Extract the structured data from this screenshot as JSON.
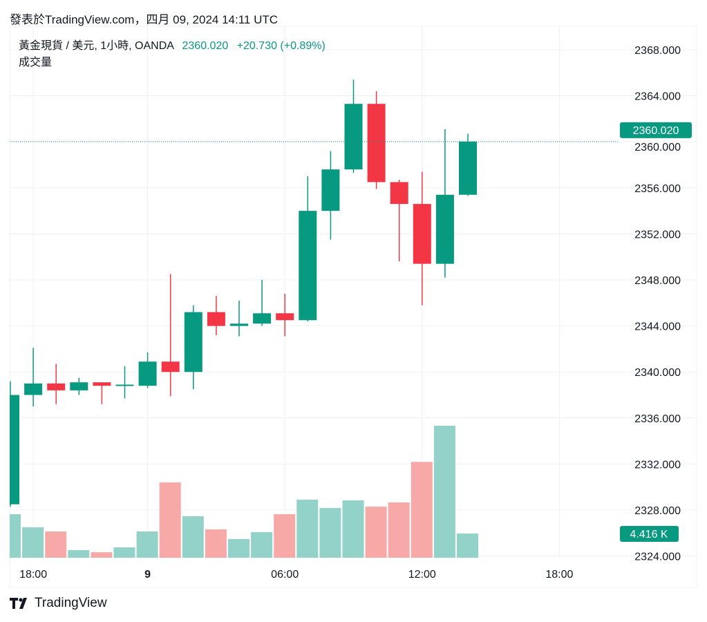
{
  "published": "發表於TradingView.com，四月 09, 2024 14:11 UTC",
  "legend": {
    "symbol": "黃金現貨 / 美元, 1小時, OANDA",
    "last": "2360.020",
    "change": "+20.730 (+0.89%)",
    "volume_label": "成交量"
  },
  "footer": {
    "brand": "TradingView"
  },
  "colors": {
    "up": "#089981",
    "down": "#f23645",
    "up_vol": "#92d2c9",
    "down_vol": "#f7a9a7",
    "grid": "#f0f1f3"
  },
  "chart_data": {
    "type": "candlestick",
    "title": "黃金現貨 / 美元, 1小時, OANDA",
    "ylim": [
      2324,
      2370
    ],
    "y_ticks": [
      "2368.000",
      "2364.000",
      "2360.000",
      "2356.000",
      "2352.000",
      "2348.000",
      "2344.000",
      "2340.000",
      "2336.000",
      "2332.000",
      "2328.000",
      "2324.000"
    ],
    "x_ticks": [
      {
        "label": "18:00",
        "index": 1
      },
      {
        "label": "9",
        "index": 6
      },
      {
        "label": "06:00",
        "index": 12
      },
      {
        "label": "12:00",
        "index": 18
      },
      {
        "label": "18:00",
        "index": 24
      }
    ],
    "last_price_label": "2360.020",
    "last_volume_label": "4.416 K",
    "candles": [
      {
        "o": 2328.5,
        "h": 2339.2,
        "l": 2328.3,
        "c": 2338.0,
        "v": 7.95
      },
      {
        "o": 2338.0,
        "h": 2342.1,
        "l": 2337.0,
        "c": 2339.0,
        "v": 5.55
      },
      {
        "o": 2339.0,
        "h": 2340.7,
        "l": 2337.2,
        "c": 2338.4,
        "v": 4.79
      },
      {
        "o": 2338.4,
        "h": 2339.5,
        "l": 2338.0,
        "c": 2339.1,
        "v": 1.39
      },
      {
        "o": 2339.1,
        "h": 2339.1,
        "l": 2337.2,
        "c": 2338.8,
        "v": 1.0
      },
      {
        "o": 2338.8,
        "h": 2340.5,
        "l": 2337.7,
        "c": 2338.9,
        "v": 1.89
      },
      {
        "o": 2338.8,
        "h": 2341.7,
        "l": 2338.6,
        "c": 2340.9,
        "v": 4.79
      },
      {
        "o": 2340.9,
        "h": 2348.5,
        "l": 2337.9,
        "c": 2340.0,
        "v": 13.75
      },
      {
        "o": 2340.0,
        "h": 2345.8,
        "l": 2338.5,
        "c": 2345.2,
        "v": 7.57
      },
      {
        "o": 2345.2,
        "h": 2346.6,
        "l": 2343.2,
        "c": 2344.0,
        "v": 5.17
      },
      {
        "o": 2344.0,
        "h": 2346.2,
        "l": 2343.1,
        "c": 2344.2,
        "v": 3.41
      },
      {
        "o": 2344.2,
        "h": 2348.0,
        "l": 2344.0,
        "c": 2345.1,
        "v": 4.67
      },
      {
        "o": 2345.1,
        "h": 2346.8,
        "l": 2343.1,
        "c": 2344.5,
        "v": 7.95
      },
      {
        "o": 2344.5,
        "h": 2357.0,
        "l": 2344.4,
        "c": 2354.0,
        "v": 10.6
      },
      {
        "o": 2354.0,
        "h": 2359.2,
        "l": 2351.5,
        "c": 2357.6,
        "v": 9.08
      },
      {
        "o": 2357.6,
        "h": 2365.4,
        "l": 2357.3,
        "c": 2363.3,
        "v": 10.47
      },
      {
        "o": 2363.3,
        "h": 2364.4,
        "l": 2355.9,
        "c": 2356.5,
        "v": 9.33
      },
      {
        "o": 2356.5,
        "h": 2356.7,
        "l": 2349.6,
        "c": 2354.6,
        "v": 10.1
      },
      {
        "o": 2354.6,
        "h": 2357.4,
        "l": 2345.8,
        "c": 2349.4,
        "v": 17.5
      },
      {
        "o": 2349.4,
        "h": 2361.1,
        "l": 2348.2,
        "c": 2355.4,
        "v": 24.1
      },
      {
        "o": 2355.4,
        "h": 2360.7,
        "l": 2355.3,
        "c": 2360.02,
        "v": 4.416
      }
    ]
  }
}
